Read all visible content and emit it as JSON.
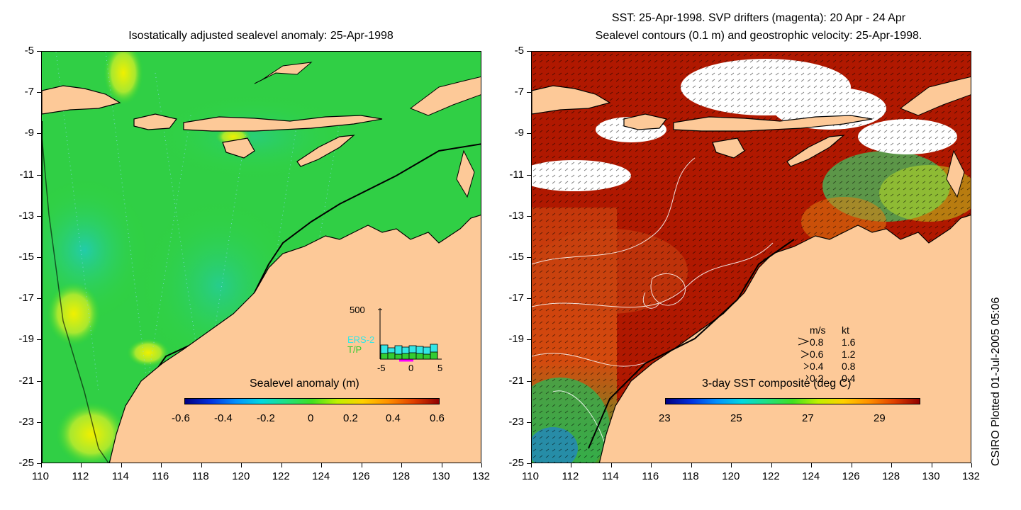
{
  "left_panel": {
    "title": "Isostatically adjusted sealevel anomaly: 25-Apr-1998",
    "colorbar": {
      "label": "Sealevel anomaly (m)",
      "ticks": [
        "-0.6",
        "-0.4",
        "-0.2",
        "0",
        "0.2",
        "0.4",
        "0.6"
      ]
    },
    "inset": {
      "ytick": "500",
      "label_ers": "ERS-2",
      "label_tp": "T/P",
      "xticks": [
        "-5",
        "0",
        "5"
      ],
      "ers_color": "#33e6e6",
      "tp_color": "#33cc33"
    }
  },
  "right_panel": {
    "title_line1": "SST: 25-Apr-1998. SVP drifters (magenta): 20 Apr - 24 Apr",
    "title_line2": "Sealevel contours (0.1 m) and geostrophic velocity: 25-Apr-1998.",
    "colorbar": {
      "label": "3-day SST composite (deg C)",
      "ticks": [
        "23",
        "25",
        "27",
        "29"
      ]
    },
    "velocity_legend": {
      "header_ms": "m/s",
      "header_kt": "kt",
      "rows": [
        {
          "ms": "0.8",
          "kt": "1.6"
        },
        {
          "ms": "0.6",
          "kt": "1.2"
        },
        {
          "ms": "0.4",
          "kt": "0.8"
        },
        {
          "ms": "0.2",
          "kt": "0.4"
        }
      ]
    }
  },
  "axes": {
    "y_ticks": [
      "-5",
      "-7",
      "-9",
      "-11",
      "-13",
      "-15",
      "-17",
      "-19",
      "-21",
      "-23",
      "-25"
    ],
    "x_ticks": [
      "110",
      "112",
      "114",
      "116",
      "118",
      "120",
      "122",
      "124",
      "126",
      "128",
      "130",
      "132"
    ]
  },
  "credit": "CSIRO Plotted 01-Jul-2005 05:06",
  "colors": {
    "land": "#fdc998",
    "ocean_anomaly": "#33d633",
    "sst_hot": "#b01800",
    "cloud": "#ffffff"
  }
}
